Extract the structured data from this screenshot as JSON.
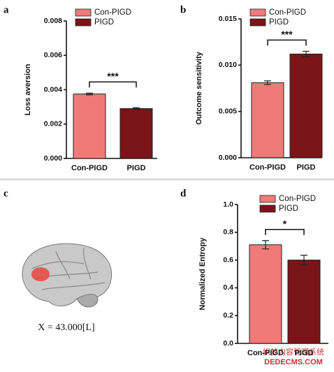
{
  "panel_labels": [
    "a",
    "b",
    "c",
    "d"
  ],
  "brain_caption": "X = 43.000[L]",
  "watermark": [
    "织梦内容管理系统",
    "DEDECMS.COM"
  ],
  "chart_data": [
    {
      "type": "bar",
      "ylabel": "Loss aversion",
      "categories": [
        "Con-PIGD",
        "PIGD"
      ],
      "values": [
        0.00375,
        0.0029
      ],
      "errors": [
        5e-05,
        5e-05
      ],
      "colors": [
        "#f07a78",
        "#7a1418"
      ],
      "ylim": [
        0,
        0.008
      ],
      "yticks": [
        {
          "value": 0,
          "label": "0.000"
        },
        {
          "value": 0.002,
          "label": "0.002"
        },
        {
          "value": 0.004,
          "label": "0.004"
        },
        {
          "value": 0.006,
          "label": "0.006"
        },
        {
          "value": 0.008,
          "label": "0.008"
        }
      ],
      "significance": "***"
    },
    {
      "type": "bar",
      "ylabel": "Outcome sensitivity",
      "categories": [
        "Con-PIGD",
        "PIGD"
      ],
      "values": [
        0.0081,
        0.0112
      ],
      "errors": [
        0.0002,
        0.0003
      ],
      "colors": [
        "#f07a78",
        "#7a1418"
      ],
      "ylim": [
        0,
        0.015
      ],
      "yticks": [
        {
          "value": 0,
          "label": "0.000"
        },
        {
          "value": 0.005,
          "label": "0.005"
        },
        {
          "value": 0.01,
          "label": "0.010"
        },
        {
          "value": 0.015,
          "label": "0.015"
        }
      ],
      "significance": "***"
    },
    {
      "type": "bar",
      "ylabel": "Normalized Entropy",
      "categories": [
        "Con-PIGD",
        "PIGD"
      ],
      "values": [
        0.71,
        0.6
      ],
      "errors": [
        0.03,
        0.035
      ],
      "colors": [
        "#f07a78",
        "#7a1418"
      ],
      "ylim": [
        0,
        1
      ],
      "yticks": [
        {
          "value": 0,
          "label": "0.0"
        },
        0.2,
        0.4,
        0.6,
        0.8,
        {
          "value": 1,
          "label": "1.0"
        }
      ],
      "significance": "*"
    }
  ]
}
